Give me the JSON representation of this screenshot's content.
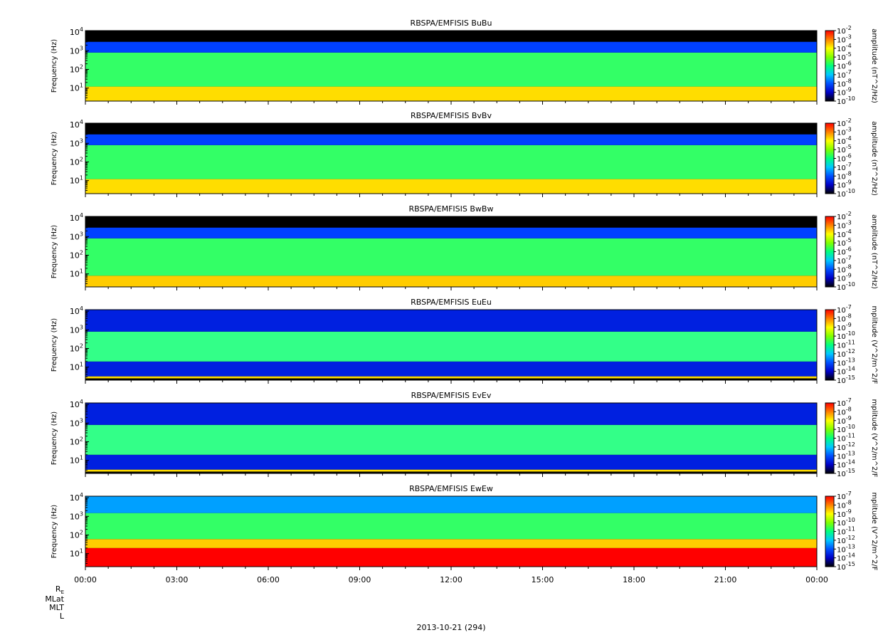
{
  "chart_data": [
    {
      "type": "heatmap",
      "title": "RBSPA/EMFISIS  BuBu",
      "ylabel": "Frequency (Hz)",
      "ylim": [
        2,
        12000
      ],
      "y_scale": "log",
      "y_ticks": [
        {
          "value": 10,
          "base": "10",
          "exp": "1"
        },
        {
          "value": 100,
          "base": "10",
          "exp": "2"
        },
        {
          "value": 1000,
          "base": "10",
          "exp": "3"
        },
        {
          "value": 10000,
          "base": "10",
          "exp": "4"
        }
      ],
      "colorbar": {
        "label": "amplitude (nT^2/Hz)",
        "scale": "log",
        "ticks": [
          {
            "base": "10",
            "exp": "-2"
          },
          {
            "base": "10",
            "exp": "-3"
          },
          {
            "base": "10",
            "exp": "-4"
          },
          {
            "base": "10",
            "exp": "-5"
          },
          {
            "base": "10",
            "exp": "-6"
          },
          {
            "base": "10",
            "exp": "-7"
          },
          {
            "base": "10",
            "exp": "-8"
          },
          {
            "base": "10",
            "exp": "-9"
          },
          {
            "base": "10",
            "exp": "-10"
          }
        ],
        "colors": [
          "#000000",
          "#0000c8",
          "#0050ff",
          "#00c8ff",
          "#00ff80",
          "#80ff00",
          "#ffff00",
          "#ff8000",
          "#ff0000"
        ]
      },
      "spectral_layers": [
        {
          "name": "dense-low",
          "fmin": 2,
          "fmax": 12,
          "color": "#ffdd00"
        },
        {
          "name": "mid-band",
          "fmin": 12,
          "fmax": 800,
          "color": "#33ff66"
        },
        {
          "name": "upper-band",
          "fmin": 800,
          "fmax": 3000,
          "color": "#0040ff"
        }
      ]
    },
    {
      "type": "heatmap",
      "title": "RBSPA/EMFISIS  BvBv",
      "ylabel": "Frequency (Hz)",
      "ylim": [
        2,
        12000
      ],
      "y_scale": "log",
      "y_ticks": [
        {
          "value": 10,
          "base": "10",
          "exp": "1"
        },
        {
          "value": 100,
          "base": "10",
          "exp": "2"
        },
        {
          "value": 1000,
          "base": "10",
          "exp": "3"
        },
        {
          "value": 10000,
          "base": "10",
          "exp": "4"
        }
      ],
      "colorbar": {
        "label": "amplitude (nT^2/Hz)",
        "scale": "log",
        "ticks": [
          {
            "base": "10",
            "exp": "-2"
          },
          {
            "base": "10",
            "exp": "-3"
          },
          {
            "base": "10",
            "exp": "-4"
          },
          {
            "base": "10",
            "exp": "-5"
          },
          {
            "base": "10",
            "exp": "-6"
          },
          {
            "base": "10",
            "exp": "-7"
          },
          {
            "base": "10",
            "exp": "-8"
          },
          {
            "base": "10",
            "exp": "-9"
          },
          {
            "base": "10",
            "exp": "-10"
          }
        ],
        "colors": [
          "#000000",
          "#0000c8",
          "#0050ff",
          "#00c8ff",
          "#00ff80",
          "#80ff00",
          "#ffff00",
          "#ff8000",
          "#ff0000"
        ]
      },
      "spectral_layers": [
        {
          "name": "dense-low",
          "fmin": 2,
          "fmax": 12,
          "color": "#ffdd00"
        },
        {
          "name": "mid-band",
          "fmin": 12,
          "fmax": 800,
          "color": "#33ff66"
        },
        {
          "name": "upper-band",
          "fmin": 800,
          "fmax": 3000,
          "color": "#0040ff"
        }
      ]
    },
    {
      "type": "heatmap",
      "title": "RBSPA/EMFISIS  BwBw",
      "ylabel": "Frequency (Hz)",
      "ylim": [
        2,
        12000
      ],
      "y_scale": "log",
      "y_ticks": [
        {
          "value": 10,
          "base": "10",
          "exp": "1"
        },
        {
          "value": 100,
          "base": "10",
          "exp": "2"
        },
        {
          "value": 1000,
          "base": "10",
          "exp": "3"
        },
        {
          "value": 10000,
          "base": "10",
          "exp": "4"
        }
      ],
      "colorbar": {
        "label": "amplitude (nT^2/Hz)",
        "scale": "log",
        "ticks": [
          {
            "base": "10",
            "exp": "-2"
          },
          {
            "base": "10",
            "exp": "-3"
          },
          {
            "base": "10",
            "exp": "-4"
          },
          {
            "base": "10",
            "exp": "-5"
          },
          {
            "base": "10",
            "exp": "-6"
          },
          {
            "base": "10",
            "exp": "-7"
          },
          {
            "base": "10",
            "exp": "-8"
          },
          {
            "base": "10",
            "exp": "-9"
          },
          {
            "base": "10",
            "exp": "-10"
          }
        ],
        "colors": [
          "#000000",
          "#0000c8",
          "#0050ff",
          "#00c8ff",
          "#00ff80",
          "#80ff00",
          "#ffff00",
          "#ff8000",
          "#ff0000"
        ]
      },
      "spectral_layers": [
        {
          "name": "dense-low",
          "fmin": 2,
          "fmax": 8,
          "color": "#ffcc00"
        },
        {
          "name": "mid-band",
          "fmin": 8,
          "fmax": 800,
          "color": "#33ff66"
        },
        {
          "name": "upper-band",
          "fmin": 800,
          "fmax": 3000,
          "color": "#0040ff"
        }
      ]
    },
    {
      "type": "heatmap",
      "title": "RBSPA/EMFISIS  EuEu",
      "ylabel": "Frequency (Hz)",
      "ylim": [
        2,
        12000
      ],
      "y_scale": "log",
      "y_ticks": [
        {
          "value": 10,
          "base": "10",
          "exp": "1"
        },
        {
          "value": 100,
          "base": "10",
          "exp": "2"
        },
        {
          "value": 1000,
          "base": "10",
          "exp": "3"
        },
        {
          "value": 10000,
          "base": "10",
          "exp": "4"
        }
      ],
      "colorbar": {
        "label": "mplitude (V^2/m^2/F",
        "scale": "log",
        "ticks": [
          {
            "base": "10",
            "exp": "-7"
          },
          {
            "base": "10",
            "exp": "-8"
          },
          {
            "base": "10",
            "exp": "-9"
          },
          {
            "base": "10",
            "exp": "-10"
          },
          {
            "base": "10",
            "exp": "-11"
          },
          {
            "base": "10",
            "exp": "-12"
          },
          {
            "base": "10",
            "exp": "-13"
          },
          {
            "base": "10",
            "exp": "-14"
          },
          {
            "base": "10",
            "exp": "-15"
          }
        ],
        "colors": [
          "#000000",
          "#0000c8",
          "#0050ff",
          "#00c8ff",
          "#00ff80",
          "#80ff00",
          "#ffff00",
          "#ff8000",
          "#ff0000"
        ]
      },
      "spectral_layers": [
        {
          "name": "line-low",
          "fmin": 2.5,
          "fmax": 3.2,
          "color": "#ffdd00"
        },
        {
          "name": "low-band",
          "fmin": 3.2,
          "fmax": 20,
          "color": "#0020e0"
        },
        {
          "name": "mid-band",
          "fmin": 20,
          "fmax": 800,
          "color": "#33ff88"
        },
        {
          "name": "upper-band",
          "fmin": 800,
          "fmax": 12000,
          "color": "#0020e0"
        }
      ]
    },
    {
      "type": "heatmap",
      "title": "RBSPA/EMFISIS  EvEv",
      "ylabel": "Frequency (Hz)",
      "ylim": [
        2,
        12000
      ],
      "y_scale": "log",
      "y_ticks": [
        {
          "value": 10,
          "base": "10",
          "exp": "1"
        },
        {
          "value": 100,
          "base": "10",
          "exp": "2"
        },
        {
          "value": 1000,
          "base": "10",
          "exp": "3"
        },
        {
          "value": 10000,
          "base": "10",
          "exp": "4"
        }
      ],
      "colorbar": {
        "label": "mplitude (V^2/m^2/F",
        "scale": "log",
        "ticks": [
          {
            "base": "10",
            "exp": "-7"
          },
          {
            "base": "10",
            "exp": "-8"
          },
          {
            "base": "10",
            "exp": "-9"
          },
          {
            "base": "10",
            "exp": "-10"
          },
          {
            "base": "10",
            "exp": "-11"
          },
          {
            "base": "10",
            "exp": "-12"
          },
          {
            "base": "10",
            "exp": "-13"
          },
          {
            "base": "10",
            "exp": "-14"
          },
          {
            "base": "10",
            "exp": "-15"
          }
        ],
        "colors": [
          "#000000",
          "#0000c8",
          "#0050ff",
          "#00c8ff",
          "#00ff80",
          "#80ff00",
          "#ffff00",
          "#ff8000",
          "#ff0000"
        ]
      },
      "spectral_layers": [
        {
          "name": "line-low",
          "fmin": 2.5,
          "fmax": 3.2,
          "color": "#ffdd00"
        },
        {
          "name": "low-band",
          "fmin": 3.2,
          "fmax": 20,
          "color": "#0020e0"
        },
        {
          "name": "mid-band",
          "fmin": 20,
          "fmax": 800,
          "color": "#33ff88"
        },
        {
          "name": "upper-band",
          "fmin": 800,
          "fmax": 12000,
          "color": "#0020e0"
        }
      ]
    },
    {
      "type": "heatmap",
      "title": "RBSPA/EMFISIS  EwEw",
      "ylabel": "Frequency (Hz)",
      "ylim": [
        2,
        12000
      ],
      "y_scale": "log",
      "y_ticks": [
        {
          "value": 10,
          "base": "10",
          "exp": "1"
        },
        {
          "value": 100,
          "base": "10",
          "exp": "2"
        },
        {
          "value": 1000,
          "base": "10",
          "exp": "3"
        },
        {
          "value": 10000,
          "base": "10",
          "exp": "4"
        }
      ],
      "colorbar": {
        "label": "mplitude (V^2/m^2/F",
        "scale": "log",
        "ticks": [
          {
            "base": "10",
            "exp": "-7"
          },
          {
            "base": "10",
            "exp": "-8"
          },
          {
            "base": "10",
            "exp": "-9"
          },
          {
            "base": "10",
            "exp": "-10"
          },
          {
            "base": "10",
            "exp": "-11"
          },
          {
            "base": "10",
            "exp": "-12"
          },
          {
            "base": "10",
            "exp": "-13"
          },
          {
            "base": "10",
            "exp": "-14"
          },
          {
            "base": "10",
            "exp": "-15"
          }
        ],
        "colors": [
          "#000000",
          "#0000c8",
          "#0050ff",
          "#00c8ff",
          "#00ff80",
          "#80ff00",
          "#ffff00",
          "#ff8000",
          "#ff0000"
        ]
      },
      "spectral_layers": [
        {
          "name": "red-low",
          "fmin": 2,
          "fmax": 20,
          "color": "#ff0000"
        },
        {
          "name": "yellow-band",
          "fmin": 20,
          "fmax": 60,
          "color": "#ffcc00"
        },
        {
          "name": "green-band",
          "fmin": 60,
          "fmax": 1500,
          "color": "#33ff66"
        },
        {
          "name": "upper-band",
          "fmin": 1500,
          "fmax": 12000,
          "color": "#00a0ff"
        }
      ]
    }
  ],
  "x_axis": {
    "tick_labels": [
      "00:00",
      "03:00",
      "06:00",
      "09:00",
      "12:00",
      "15:00",
      "18:00",
      "21:00",
      "00:00"
    ],
    "date_label": "2013-10-21 (294)"
  },
  "ephemeris_labels": {
    "re_base": "R",
    "re_sub": "E",
    "mlat": "MLat",
    "mlt": "MLT",
    "l": "L"
  }
}
